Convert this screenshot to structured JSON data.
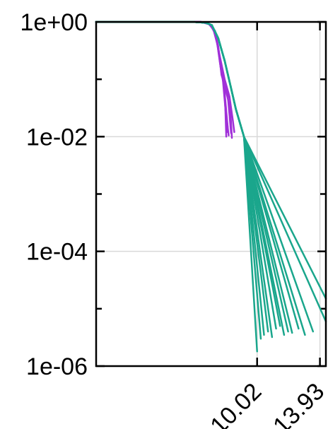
{
  "chart_data": {
    "type": "line",
    "title": "",
    "xlabel": "",
    "ylabel": "",
    "y_scale": "log",
    "xlim": [
      0,
      14.3
    ],
    "ylim": [
      1e-06,
      1
    ],
    "x_ticks": [
      {
        "value": 10.02,
        "label": "10.02"
      },
      {
        "value": 13.93,
        "label": "13.93"
      }
    ],
    "y_ticks": [
      {
        "value": 1,
        "label": "1e+00"
      },
      {
        "value": 0.01,
        "label": "1e-02"
      },
      {
        "value": 0.0001,
        "label": "1e-04"
      },
      {
        "value": 1e-06,
        "label": "1e-06"
      }
    ],
    "y_minor_ticks": [
      0.1,
      0.001,
      1e-05
    ],
    "grid": true,
    "legend": "none",
    "colors": {
      "purple": "#a030d8",
      "teal": "#1aa68c",
      "grid": "#d9d9d9",
      "axis": "#000000"
    },
    "purple_curves": [
      [
        [
          0,
          1
        ],
        [
          6.5,
          1
        ],
        [
          7.0,
          0.93
        ],
        [
          7.3,
          0.76
        ],
        [
          7.55,
          0.43
        ],
        [
          7.75,
          0.16
        ],
        [
          8.0,
          0.07
        ],
        [
          8.1,
          0.01
        ]
      ],
      [
        [
          0,
          1
        ],
        [
          6.5,
          1
        ],
        [
          7.0,
          0.93
        ],
        [
          7.35,
          0.72
        ],
        [
          7.6,
          0.38
        ],
        [
          7.8,
          0.12
        ],
        [
          8.2,
          0.05
        ],
        [
          8.4,
          0.0115
        ]
      ],
      [
        [
          0,
          1
        ],
        [
          6.5,
          1
        ],
        [
          7.05,
          0.92
        ],
        [
          7.4,
          0.66
        ],
        [
          7.65,
          0.28
        ],
        [
          7.9,
          0.09
        ],
        [
          8.05,
          0.03
        ],
        [
          8.25,
          0.0105
        ]
      ],
      [
        [
          0,
          1
        ],
        [
          6.5,
          1
        ],
        [
          7.0,
          0.94
        ],
        [
          7.25,
          0.8
        ],
        [
          7.5,
          0.5
        ],
        [
          7.7,
          0.2
        ],
        [
          7.95,
          0.08
        ],
        [
          8.15,
          0.012
        ]
      ],
      [
        [
          0,
          1
        ],
        [
          6.5,
          1
        ],
        [
          7.1,
          0.9
        ],
        [
          7.45,
          0.6
        ],
        [
          7.7,
          0.25
        ],
        [
          8.0,
          0.1
        ],
        [
          8.3,
          0.05
        ],
        [
          8.5,
          0.02
        ],
        [
          8.6,
          0.012
        ]
      ],
      [
        [
          0,
          1
        ],
        [
          6.5,
          1
        ],
        [
          7.0,
          0.93
        ],
        [
          7.3,
          0.74
        ],
        [
          7.55,
          0.4
        ],
        [
          7.8,
          0.15
        ],
        [
          8.1,
          0.06
        ],
        [
          8.35,
          0.03
        ],
        [
          8.45,
          0.0095
        ]
      ],
      [
        [
          0,
          1
        ],
        [
          6.5,
          1
        ],
        [
          7.05,
          0.92
        ],
        [
          7.4,
          0.7
        ],
        [
          7.6,
          0.35
        ],
        [
          7.85,
          0.13
        ],
        [
          8.05,
          0.04
        ],
        [
          8.2,
          0.0135
        ]
      ]
    ],
    "teal_curves": [
      [
        [
          0,
          1
        ],
        [
          6.0,
          1
        ],
        [
          6.8,
          0.97
        ],
        [
          7.2,
          0.88
        ],
        [
          7.6,
          0.52
        ],
        [
          8.0,
          0.21
        ],
        [
          8.35,
          0.08
        ],
        [
          8.7,
          0.03
        ],
        [
          9.2,
          0.01
        ],
        [
          10.02,
          1.8e-06
        ]
      ],
      [
        [
          0,
          1
        ],
        [
          6.0,
          1
        ],
        [
          6.8,
          0.97
        ],
        [
          7.2,
          0.88
        ],
        [
          7.6,
          0.52
        ],
        [
          8.0,
          0.21
        ],
        [
          8.35,
          0.08
        ],
        [
          8.7,
          0.03
        ],
        [
          9.2,
          0.01
        ],
        [
          10.25,
          3e-06
        ]
      ],
      [
        [
          0,
          1
        ],
        [
          6.0,
          1
        ],
        [
          6.8,
          0.97
        ],
        [
          7.2,
          0.88
        ],
        [
          7.6,
          0.52
        ],
        [
          8.0,
          0.21
        ],
        [
          8.35,
          0.08
        ],
        [
          8.7,
          0.03
        ],
        [
          9.2,
          0.01
        ],
        [
          10.45,
          3.5e-06
        ]
      ],
      [
        [
          0,
          1
        ],
        [
          6.0,
          1
        ],
        [
          6.8,
          0.97
        ],
        [
          7.2,
          0.88
        ],
        [
          7.6,
          0.52
        ],
        [
          8.0,
          0.21
        ],
        [
          8.35,
          0.08
        ],
        [
          8.7,
          0.03
        ],
        [
          9.2,
          0.01
        ],
        [
          10.7,
          4e-06
        ]
      ],
      [
        [
          0,
          1
        ],
        [
          6.0,
          1
        ],
        [
          6.8,
          0.97
        ],
        [
          7.2,
          0.88
        ],
        [
          7.6,
          0.52
        ],
        [
          8.0,
          0.21
        ],
        [
          8.35,
          0.08
        ],
        [
          8.7,
          0.03
        ],
        [
          9.2,
          0.01
        ],
        [
          10.95,
          3.2e-06
        ]
      ],
      [
        [
          0,
          1
        ],
        [
          6.0,
          1
        ],
        [
          6.8,
          0.97
        ],
        [
          7.2,
          0.88
        ],
        [
          7.6,
          0.52
        ],
        [
          8.0,
          0.21
        ],
        [
          8.35,
          0.08
        ],
        [
          8.7,
          0.03
        ],
        [
          9.2,
          0.01
        ],
        [
          11.2,
          4.5e-06
        ]
      ],
      [
        [
          0,
          1
        ],
        [
          6.0,
          1
        ],
        [
          6.8,
          0.97
        ],
        [
          7.2,
          0.88
        ],
        [
          7.6,
          0.52
        ],
        [
          8.0,
          0.21
        ],
        [
          8.35,
          0.08
        ],
        [
          8.7,
          0.03
        ],
        [
          9.2,
          0.01
        ],
        [
          11.45,
          5e-06
        ]
      ],
      [
        [
          0,
          1
        ],
        [
          6.0,
          1
        ],
        [
          6.8,
          0.97
        ],
        [
          7.2,
          0.88
        ],
        [
          7.6,
          0.52
        ],
        [
          8.0,
          0.21
        ],
        [
          8.35,
          0.08
        ],
        [
          8.7,
          0.03
        ],
        [
          9.2,
          0.01
        ],
        [
          11.7,
          3.5e-06
        ]
      ],
      [
        [
          0,
          1
        ],
        [
          6.0,
          1
        ],
        [
          6.8,
          0.97
        ],
        [
          7.2,
          0.88
        ],
        [
          7.6,
          0.52
        ],
        [
          8.0,
          0.21
        ],
        [
          8.35,
          0.08
        ],
        [
          8.7,
          0.03
        ],
        [
          9.2,
          0.01
        ],
        [
          11.95,
          4e-06
        ]
      ],
      [
        [
          0,
          1
        ],
        [
          6.0,
          1
        ],
        [
          6.8,
          0.97
        ],
        [
          7.2,
          0.88
        ],
        [
          7.6,
          0.52
        ],
        [
          8.0,
          0.21
        ],
        [
          8.35,
          0.08
        ],
        [
          8.7,
          0.03
        ],
        [
          9.2,
          0.01
        ],
        [
          12.2,
          3.8e-06
        ]
      ],
      [
        [
          0,
          1
        ],
        [
          6.0,
          1
        ],
        [
          6.8,
          0.97
        ],
        [
          7.2,
          0.88
        ],
        [
          7.6,
          0.52
        ],
        [
          8.0,
          0.21
        ],
        [
          8.35,
          0.08
        ],
        [
          8.7,
          0.03
        ],
        [
          9.2,
          0.01
        ],
        [
          12.6,
          4.5e-06
        ]
      ],
      [
        [
          0,
          1
        ],
        [
          6.0,
          1
        ],
        [
          6.8,
          0.97
        ],
        [
          7.2,
          0.88
        ],
        [
          7.6,
          0.52
        ],
        [
          8.0,
          0.21
        ],
        [
          8.35,
          0.08
        ],
        [
          8.7,
          0.03
        ],
        [
          9.2,
          0.01
        ],
        [
          13.0,
          3.5e-06
        ]
      ],
      [
        [
          0,
          1
        ],
        [
          6.0,
          1
        ],
        [
          6.8,
          0.97
        ],
        [
          7.2,
          0.88
        ],
        [
          7.6,
          0.52
        ],
        [
          8.0,
          0.21
        ],
        [
          8.35,
          0.08
        ],
        [
          8.7,
          0.03
        ],
        [
          9.2,
          0.01
        ],
        [
          13.5,
          4e-06
        ]
      ],
      [
        [
          0,
          1
        ],
        [
          6.0,
          1
        ],
        [
          6.8,
          0.97
        ],
        [
          7.2,
          0.88
        ],
        [
          7.6,
          0.52
        ],
        [
          8.0,
          0.21
        ],
        [
          8.35,
          0.08
        ],
        [
          8.7,
          0.03
        ],
        [
          9.2,
          0.01
        ],
        [
          14.3,
          6e-06
        ]
      ],
      [
        [
          0,
          1
        ],
        [
          6.0,
          1
        ],
        [
          6.8,
          0.97
        ],
        [
          7.2,
          0.88
        ],
        [
          7.6,
          0.52
        ],
        [
          8.0,
          0.21
        ],
        [
          8.35,
          0.08
        ],
        [
          8.7,
          0.03
        ],
        [
          9.2,
          0.01
        ],
        [
          14.3,
          1.5e-05
        ]
      ]
    ]
  }
}
